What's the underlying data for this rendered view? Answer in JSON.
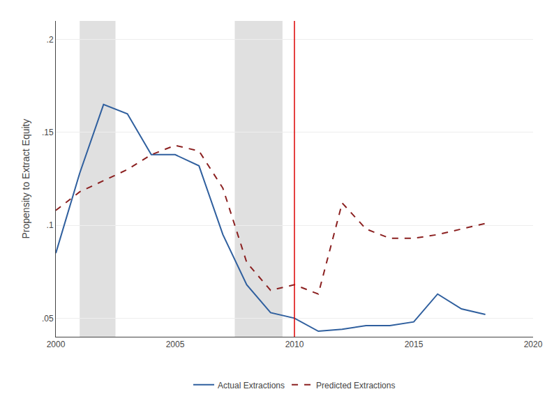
{
  "chart_data": {
    "type": "line",
    "y_label": "Propensity to Extract Equity",
    "x": [
      2000,
      2001,
      2002,
      2003,
      2004,
      2005,
      2006,
      2007,
      2008,
      2009,
      2010,
      2011,
      2012,
      2013,
      2014,
      2015,
      2016,
      2017,
      2018
    ],
    "series": [
      {
        "name": "Actual Extractions",
        "color": "#2f5f9e",
        "line_style": "solid",
        "values": [
          0.085,
          0.128,
          0.165,
          0.16,
          0.138,
          0.138,
          0.132,
          0.095,
          0.068,
          0.053,
          0.05,
          0.043,
          0.044,
          0.046,
          0.046,
          0.048,
          0.063,
          0.055,
          0.052
        ]
      },
      {
        "name": "Predicted Extractions",
        "color": "#8b2020",
        "line_style": "dashed",
        "values": [
          0.108,
          0.118,
          0.124,
          0.13,
          0.138,
          0.143,
          0.14,
          0.12,
          0.08,
          0.065,
          0.068,
          0.063,
          0.112,
          0.098,
          0.093,
          0.093,
          0.095,
          0.098,
          0.101
        ]
      }
    ],
    "shaded_regions": {
      "color": "#e0e0e0",
      "ranges": [
        [
          2001.0,
          2002.5
        ],
        [
          2007.5,
          2009.5
        ]
      ]
    },
    "vline": {
      "x": 2010,
      "color": "#dd0000"
    },
    "xlim": [
      2000,
      2020
    ],
    "xticks": [
      2000,
      2005,
      2010,
      2015,
      2020
    ],
    "ylim": [
      0.04,
      0.21
    ],
    "yticks": [
      {
        "value": 0.05,
        "label": ".05"
      },
      {
        "value": 0.1,
        "label": ".1"
      },
      {
        "value": 0.15,
        "label": ".15"
      },
      {
        "value": 0.2,
        "label": ".2"
      }
    ],
    "grid": true,
    "legend": "bottom"
  }
}
